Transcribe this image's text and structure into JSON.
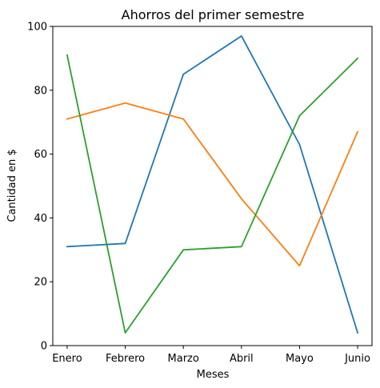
{
  "chart_data": {
    "type": "line",
    "title": "Ahorros del primer semestre",
    "xlabel": "Meses",
    "ylabel": "Cantidad en $",
    "categories": [
      "Enero",
      "Febrero",
      "Marzo",
      "Abril",
      "Mayo",
      "Junio"
    ],
    "ylim": [
      0,
      100
    ],
    "yticks": [
      0,
      20,
      40,
      60,
      80,
      100
    ],
    "grid": false,
    "legend": "none",
    "series": [
      {
        "color": "#1f77b4",
        "values": [
          31,
          32,
          85,
          97,
          63,
          4
        ]
      },
      {
        "color": "#ff7f0e",
        "values": [
          71,
          76,
          71,
          46,
          25,
          67
        ]
      },
      {
        "color": "#2ca02c",
        "values": [
          91,
          4,
          30,
          31,
          72,
          90
        ]
      }
    ]
  }
}
